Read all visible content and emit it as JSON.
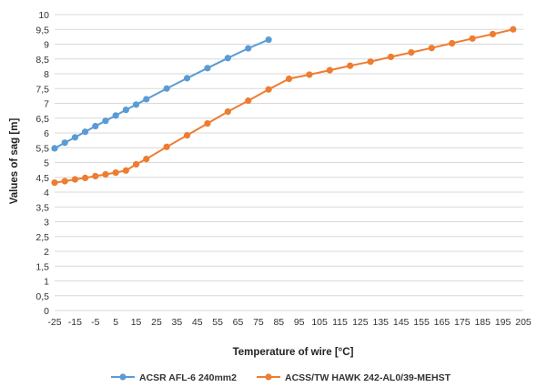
{
  "chart_data": {
    "type": "line",
    "xlabel": "Temperature of wire [°C]",
    "ylabel": "Values of sag  [m]",
    "xlim": [
      -25,
      205
    ],
    "ylim": [
      0,
      10
    ],
    "x_ticks": [
      -25,
      -15,
      -5,
      5,
      15,
      25,
      35,
      45,
      55,
      65,
      75,
      85,
      95,
      105,
      115,
      125,
      135,
      145,
      155,
      165,
      175,
      185,
      195,
      205
    ],
    "y_ticks": [
      0,
      0.5,
      1,
      1.5,
      2,
      2.5,
      3,
      3.5,
      4,
      4.5,
      5,
      5.5,
      6,
      6.5,
      7,
      7.5,
      8,
      8.5,
      9,
      9.5,
      10
    ],
    "y_tick_labels": [
      "0",
      "0,5",
      "1",
      "1,5",
      "2",
      "2,5",
      "3",
      "3,5",
      "4",
      "4,5",
      "5",
      "5,5",
      "6",
      "6,5",
      "7",
      "7,5",
      "8",
      "8,5",
      "9",
      "9,5",
      "10"
    ],
    "grid": "horizontal",
    "legend_position": "bottom",
    "series": [
      {
        "name": "ACSR AFL-6 240mm2",
        "color": "#5b9bd5",
        "x": [
          -25,
          -20,
          -15,
          -10,
          -5,
          0,
          5,
          10,
          15,
          20,
          30,
          40,
          50,
          60,
          70,
          80
        ],
        "y": [
          5.48,
          5.67,
          5.85,
          6.04,
          6.23,
          6.41,
          6.59,
          6.78,
          6.96,
          7.14,
          7.5,
          7.85,
          8.19,
          8.53,
          8.86,
          9.15
        ]
      },
      {
        "name": "ACSS/TW HAWK 242-AL0/39-MEHST",
        "color": "#ed7d31",
        "x": [
          -25,
          -20,
          -15,
          -10,
          -5,
          0,
          5,
          10,
          15,
          20,
          30,
          40,
          50,
          60,
          70,
          80,
          90,
          100,
          110,
          120,
          130,
          140,
          150,
          160,
          170,
          180,
          190,
          200
        ],
        "y": [
          4.32,
          4.37,
          4.43,
          4.48,
          4.54,
          4.6,
          4.66,
          4.73,
          4.94,
          5.12,
          5.53,
          5.92,
          6.32,
          6.72,
          7.09,
          7.47,
          7.83,
          7.97,
          8.12,
          8.27,
          8.41,
          8.57,
          8.72,
          8.87,
          9.03,
          9.19,
          9.34,
          9.5
        ]
      }
    ]
  }
}
